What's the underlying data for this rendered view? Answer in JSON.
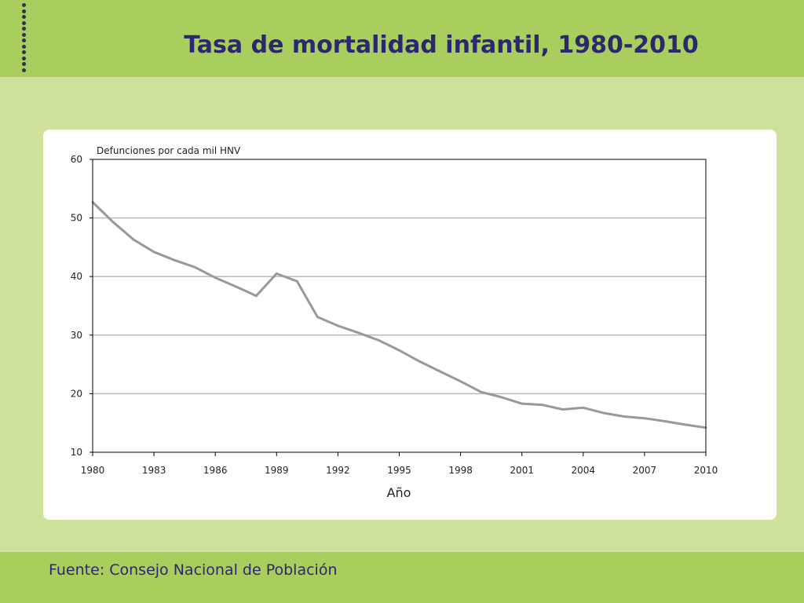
{
  "slide": {
    "title": "Tasa de mortalidad infantil, 1980-2010",
    "source": "Fuente: Consejo Nacional de Población"
  },
  "colors": {
    "band": "#a8cf5d",
    "background": "#cfe29b",
    "title": "#2b2770",
    "line": "#999999",
    "grid": "#bbbbbb"
  },
  "chart_data": {
    "type": "line",
    "title": "",
    "ylabel": "Defunciones por cada mil HNV",
    "xlabel": "Año",
    "xlim": [
      1980,
      2010
    ],
    "ylim": [
      10,
      60
    ],
    "xticks": [
      1980,
      1983,
      1986,
      1989,
      1992,
      1995,
      1998,
      2001,
      2004,
      2007,
      2010
    ],
    "yticks": [
      10,
      20,
      30,
      40,
      50,
      60
    ],
    "grid": true,
    "x": [
      1980,
      1981,
      1982,
      1983,
      1984,
      1985,
      1986,
      1987,
      1988,
      1989,
      1990,
      1991,
      1992,
      1993,
      1994,
      1995,
      1996,
      1997,
      1998,
      1999,
      2000,
      2001,
      2002,
      2003,
      2004,
      2005,
      2006,
      2007,
      2008,
      2009,
      2010
    ],
    "series": [
      {
        "values": [
          52.7,
          49.3,
          46.3,
          44.2,
          42.8,
          41.6,
          39.8,
          38.3,
          36.7,
          40.5,
          39.2,
          33.1,
          31.6,
          30.4,
          29.1,
          27.4,
          25.5,
          23.8,
          22.1,
          20.3,
          19.4,
          18.3,
          18.1,
          17.3,
          17.6,
          16.7,
          16.1,
          15.8,
          15.3,
          14.7,
          14.2
        ]
      }
    ]
  }
}
